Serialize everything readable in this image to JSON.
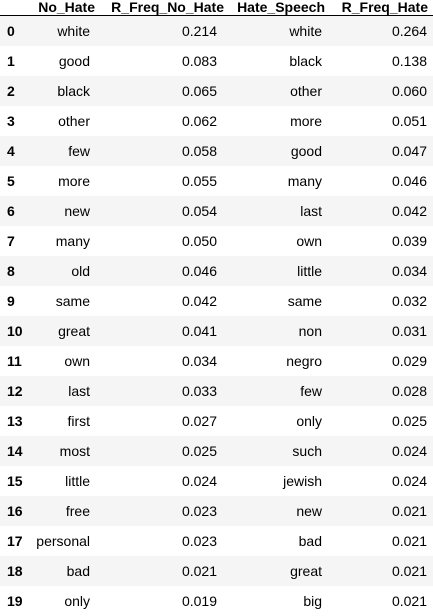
{
  "table": {
    "columns": [
      "",
      "No_Hate",
      "R_Freq_No_Hate",
      "Hate_Speech",
      "R_Freq_Hate"
    ],
    "rows": [
      {
        "index": "0",
        "no_hate": "white",
        "r_freq_no_hate": "0.214",
        "hate_speech": "white",
        "r_freq_hate": "0.264"
      },
      {
        "index": "1",
        "no_hate": "good",
        "r_freq_no_hate": "0.083",
        "hate_speech": "black",
        "r_freq_hate": "0.138"
      },
      {
        "index": "2",
        "no_hate": "black",
        "r_freq_no_hate": "0.065",
        "hate_speech": "other",
        "r_freq_hate": "0.060"
      },
      {
        "index": "3",
        "no_hate": "other",
        "r_freq_no_hate": "0.062",
        "hate_speech": "more",
        "r_freq_hate": "0.051"
      },
      {
        "index": "4",
        "no_hate": "few",
        "r_freq_no_hate": "0.058",
        "hate_speech": "good",
        "r_freq_hate": "0.047"
      },
      {
        "index": "5",
        "no_hate": "more",
        "r_freq_no_hate": "0.055",
        "hate_speech": "many",
        "r_freq_hate": "0.046"
      },
      {
        "index": "6",
        "no_hate": "new",
        "r_freq_no_hate": "0.054",
        "hate_speech": "last",
        "r_freq_hate": "0.042"
      },
      {
        "index": "7",
        "no_hate": "many",
        "r_freq_no_hate": "0.050",
        "hate_speech": "own",
        "r_freq_hate": "0.039"
      },
      {
        "index": "8",
        "no_hate": "old",
        "r_freq_no_hate": "0.046",
        "hate_speech": "little",
        "r_freq_hate": "0.034"
      },
      {
        "index": "9",
        "no_hate": "same",
        "r_freq_no_hate": "0.042",
        "hate_speech": "same",
        "r_freq_hate": "0.032"
      },
      {
        "index": "10",
        "no_hate": "great",
        "r_freq_no_hate": "0.041",
        "hate_speech": "non",
        "r_freq_hate": "0.031"
      },
      {
        "index": "11",
        "no_hate": "own",
        "r_freq_no_hate": "0.034",
        "hate_speech": "negro",
        "r_freq_hate": "0.029"
      },
      {
        "index": "12",
        "no_hate": "last",
        "r_freq_no_hate": "0.033",
        "hate_speech": "few",
        "r_freq_hate": "0.028"
      },
      {
        "index": "13",
        "no_hate": "first",
        "r_freq_no_hate": "0.027",
        "hate_speech": "only",
        "r_freq_hate": "0.025"
      },
      {
        "index": "14",
        "no_hate": "most",
        "r_freq_no_hate": "0.025",
        "hate_speech": "such",
        "r_freq_hate": "0.024"
      },
      {
        "index": "15",
        "no_hate": "little",
        "r_freq_no_hate": "0.024",
        "hate_speech": "jewish",
        "r_freq_hate": "0.024"
      },
      {
        "index": "16",
        "no_hate": "free",
        "r_freq_no_hate": "0.023",
        "hate_speech": "new",
        "r_freq_hate": "0.021"
      },
      {
        "index": "17",
        "no_hate": "personal",
        "r_freq_no_hate": "0.023",
        "hate_speech": "bad",
        "r_freq_hate": "0.021"
      },
      {
        "index": "18",
        "no_hate": "bad",
        "r_freq_no_hate": "0.021",
        "hate_speech": "great",
        "r_freq_hate": "0.021"
      },
      {
        "index": "19",
        "no_hate": "only",
        "r_freq_no_hate": "0.019",
        "hate_speech": "big",
        "r_freq_hate": "0.021"
      }
    ]
  },
  "colors": {
    "row_stripe": "#f5f5f5",
    "row_plain": "#ffffff",
    "header_rule": "#000000",
    "text": "#000000"
  }
}
